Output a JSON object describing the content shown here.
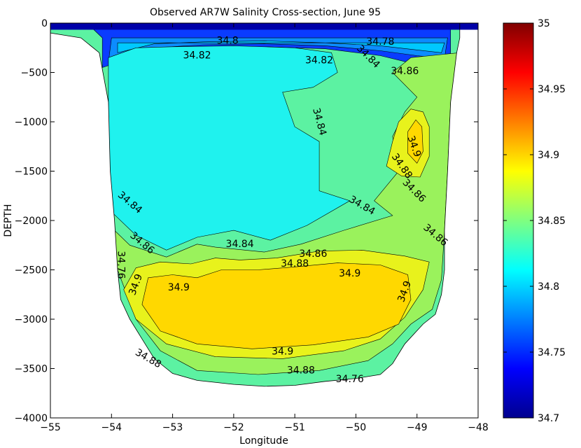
{
  "chart_data": {
    "type": "contour",
    "title": "Observed AR7W Salinity Cross-section, June 95",
    "xlabel": "Longitude",
    "ylabel": "DEPTH",
    "xlim": [
      -55,
      -48
    ],
    "ylim": [
      -4000,
      0
    ],
    "xticks": [
      -55,
      -54,
      -53,
      -52,
      -51,
      -50,
      -49,
      -48
    ],
    "yticks": [
      0,
      -500,
      -1000,
      -1500,
      -2000,
      -2500,
      -3000,
      -3500,
      -4000
    ],
    "grid": false,
    "colorbar": {
      "range": [
        34.7,
        35
      ],
      "ticks": [
        35,
        34.95,
        34.9,
        34.85,
        34.8,
        34.75,
        34.7
      ],
      "colormap": "jet"
    },
    "fill_colors": {
      "lt_34_76": "#0000a8",
      "b34_76": "#0a3cff",
      "b34_78": "#0c8cff",
      "b34_80": "#00c8ff",
      "b34_82": "#1ff2ee",
      "b34_84": "#5cf2a2",
      "b34_86": "#9af25c",
      "b34_88": "#e8f21c",
      "b34_90": "#ffd800"
    },
    "section_outline": [
      [
        -55.0,
        -100
      ],
      [
        -54.5,
        -150
      ],
      [
        -54.2,
        -300
      ],
      [
        -54.05,
        -800
      ],
      [
        -54.02,
        -1500
      ],
      [
        -53.95,
        -2000
      ],
      [
        -53.9,
        -2500
      ],
      [
        -53.85,
        -2800
      ],
      [
        -53.7,
        -3000
      ],
      [
        -53.5,
        -3200
      ],
      [
        -53.3,
        -3400
      ],
      [
        -53.0,
        -3550
      ],
      [
        -52.6,
        -3620
      ],
      [
        -52.0,
        -3660
      ],
      [
        -51.5,
        -3680
      ],
      [
        -51.0,
        -3670
      ],
      [
        -50.5,
        -3630
      ],
      [
        -50.0,
        -3600
      ],
      [
        -49.6,
        -3560
      ],
      [
        -49.4,
        -3450
      ],
      [
        -49.2,
        -3250
      ],
      [
        -48.9,
        -3050
      ],
      [
        -48.7,
        -2950
      ],
      [
        -48.6,
        -2750
      ],
      [
        -48.55,
        -2500
      ],
      [
        -48.55,
        -2100
      ],
      [
        -48.5,
        -1500
      ],
      [
        -48.45,
        -800
      ],
      [
        -48.35,
        -300
      ],
      [
        -48.3,
        -150
      ],
      [
        -48.3,
        0
      ],
      [
        -55.0,
        0
      ]
    ],
    "regions": [
      {
        "level": "b34_76",
        "points": [
          [
            -54.3,
            -60
          ],
          [
            -48.45,
            -60
          ],
          [
            -48.45,
            -300
          ],
          [
            -48.6,
            -500
          ],
          [
            -49,
            -420
          ],
          [
            -49.6,
            -330
          ],
          [
            -50.5,
            -260
          ],
          [
            -51.5,
            -240
          ],
          [
            -52.5,
            -250
          ],
          [
            -53.3,
            -290
          ],
          [
            -53.9,
            -400
          ],
          [
            -54.15,
            -450
          ],
          [
            -54.15,
            -150
          ]
        ]
      },
      {
        "level": "b34_78",
        "points": [
          [
            -54.0,
            -150
          ],
          [
            -48.5,
            -150
          ],
          [
            -48.55,
            -360
          ],
          [
            -49,
            -330
          ],
          [
            -49.6,
            -280
          ],
          [
            -50.5,
            -230
          ],
          [
            -51.5,
            -210
          ],
          [
            -52.5,
            -220
          ],
          [
            -53.3,
            -250
          ],
          [
            -53.8,
            -320
          ],
          [
            -54.05,
            -400
          ]
        ]
      },
      {
        "level": "b34_80",
        "points": [
          [
            -53.9,
            -200
          ],
          [
            -48.55,
            -200
          ],
          [
            -48.6,
            -300
          ],
          [
            -49.6,
            -230
          ],
          [
            -50.5,
            -200
          ],
          [
            -51.5,
            -180
          ],
          [
            -52.5,
            -190
          ],
          [
            -53.3,
            -210
          ],
          [
            -53.9,
            -300
          ]
        ]
      },
      {
        "level": "b34_82",
        "points": [
          [
            -54.05,
            -350
          ],
          [
            -53.6,
            -250
          ],
          [
            -53.0,
            -240
          ],
          [
            -52.0,
            -230
          ],
          [
            -51.0,
            -250
          ],
          [
            -50.4,
            -300
          ],
          [
            -50.3,
            -500
          ],
          [
            -50.7,
            -650
          ],
          [
            -51.2,
            -700
          ],
          [
            -51.0,
            -1050
          ],
          [
            -50.6,
            -1200
          ],
          [
            -50.6,
            -1700
          ],
          [
            -50.1,
            -1800
          ],
          [
            -50.8,
            -2050
          ],
          [
            -51.4,
            -2200
          ],
          [
            -52.0,
            -2100
          ],
          [
            -52.6,
            -2170
          ],
          [
            -53.1,
            -2300
          ],
          [
            -53.6,
            -2150
          ],
          [
            -54.02,
            -1900
          ],
          [
            -54.05,
            -800
          ]
        ]
      },
      {
        "level": "b34_86",
        "points": [
          [
            -48.3,
            -300
          ],
          [
            -49.1,
            -350
          ],
          [
            -49.4,
            -500
          ],
          [
            -49.0,
            -750
          ],
          [
            -49.2,
            -900
          ],
          [
            -49.4,
            -1150
          ],
          [
            -49.3,
            -1500
          ],
          [
            -49.7,
            -1800
          ],
          [
            -49.4,
            -1950
          ],
          [
            -50.2,
            -2100
          ],
          [
            -50.9,
            -2240
          ],
          [
            -51.5,
            -2320
          ],
          [
            -52.3,
            -2270
          ],
          [
            -52.6,
            -2240
          ],
          [
            -53.1,
            -2370
          ],
          [
            -53.7,
            -2250
          ],
          [
            -53.95,
            -2100
          ],
          [
            -53.9,
            -2500
          ],
          [
            -53.6,
            -3000
          ],
          [
            -53.2,
            -3320
          ],
          [
            -52.6,
            -3520
          ],
          [
            -51.6,
            -3560
          ],
          [
            -50.6,
            -3520
          ],
          [
            -49.8,
            -3420
          ],
          [
            -49.4,
            -3250
          ],
          [
            -49.1,
            -3050
          ],
          [
            -48.75,
            -2900
          ],
          [
            -48.6,
            -2600
          ],
          [
            -48.55,
            -2100
          ],
          [
            -48.5,
            -1500
          ],
          [
            -48.45,
            -800
          ]
        ]
      },
      {
        "level": "b34_88",
        "points": [
          [
            -53.6,
            -2480
          ],
          [
            -53.2,
            -2420
          ],
          [
            -52.7,
            -2440
          ],
          [
            -52.3,
            -2380
          ],
          [
            -51.9,
            -2400
          ],
          [
            -51.3,
            -2380
          ],
          [
            -50.6,
            -2310
          ],
          [
            -49.9,
            -2300
          ],
          [
            -49.2,
            -2360
          ],
          [
            -48.8,
            -2420
          ],
          [
            -48.9,
            -2700
          ],
          [
            -49.2,
            -2980
          ],
          [
            -49.6,
            -3200
          ],
          [
            -50.2,
            -3320
          ],
          [
            -51.2,
            -3400
          ],
          [
            -52.3,
            -3380
          ],
          [
            -53.1,
            -3250
          ],
          [
            -53.6,
            -3000
          ],
          [
            -53.8,
            -2700
          ]
        ]
      },
      {
        "level": "b34_90",
        "points": [
          [
            -53.4,
            -2580
          ],
          [
            -53.0,
            -2550
          ],
          [
            -52.6,
            -2580
          ],
          [
            -52.2,
            -2500
          ],
          [
            -51.6,
            -2500
          ],
          [
            -51.0,
            -2470
          ],
          [
            -50.3,
            -2430
          ],
          [
            -49.6,
            -2450
          ],
          [
            -49.15,
            -2550
          ],
          [
            -49.1,
            -2800
          ],
          [
            -49.3,
            -3050
          ],
          [
            -49.8,
            -3180
          ],
          [
            -50.7,
            -3260
          ],
          [
            -51.7,
            -3300
          ],
          [
            -52.6,
            -3250
          ],
          [
            -53.2,
            -3120
          ],
          [
            -53.5,
            -2850
          ]
        ]
      },
      {
        "level": "b34_88",
        "points": [
          [
            -49.5,
            -1450
          ],
          [
            -49.25,
            -1550
          ],
          [
            -48.95,
            -1560
          ],
          [
            -48.8,
            -1350
          ],
          [
            -48.8,
            -1050
          ],
          [
            -48.9,
            -900
          ],
          [
            -49.1,
            -870
          ],
          [
            -49.3,
            -1000
          ],
          [
            -49.4,
            -1200
          ]
        ]
      },
      {
        "level": "b34_90",
        "points": [
          [
            -49.15,
            -1320
          ],
          [
            -49.0,
            -1420
          ],
          [
            -48.9,
            -1300
          ],
          [
            -48.92,
            -1050
          ],
          [
            -49.02,
            -980
          ],
          [
            -49.15,
            -1100
          ]
        ]
      }
    ],
    "contour_labels": [
      {
        "text": "34.82",
        "x": -52.6,
        "y": -330
      },
      {
        "text": "34.82",
        "x": -50.6,
        "y": -380
      },
      {
        "text": "34.8",
        "x": -52.1,
        "y": -180
      },
      {
        "text": "34.78",
        "x": -49.6,
        "y": -190
      },
      {
        "text": "34.84",
        "x": -49.8,
        "y": -340,
        "angle": 45
      },
      {
        "text": "34.86",
        "x": -49.2,
        "y": -490
      },
      {
        "text": "34.84",
        "x": -50.6,
        "y": -1000,
        "angle": 75
      },
      {
        "text": "34.88",
        "x": -49.25,
        "y": -1450,
        "angle": 55
      },
      {
        "text": "34.9",
        "x": -49.05,
        "y": -1250,
        "angle": 70
      },
      {
        "text": "34.86",
        "x": -49.05,
        "y": -1700,
        "angle": 45
      },
      {
        "text": "34.84",
        "x": -49.9,
        "y": -1850,
        "angle": 30
      },
      {
        "text": "34.84",
        "x": -53.7,
        "y": -1820,
        "angle": 40
      },
      {
        "text": "34.86",
        "x": -53.5,
        "y": -2230,
        "angle": 40
      },
      {
        "text": "34.84",
        "x": -51.9,
        "y": -2240
      },
      {
        "text": "34.86",
        "x": -50.7,
        "y": -2340
      },
      {
        "text": "34.88",
        "x": -51.0,
        "y": -2440
      },
      {
        "text": "34.9",
        "x": -50.1,
        "y": -2540
      },
      {
        "text": "34.9",
        "x": -52.9,
        "y": -2680
      },
      {
        "text": "34.9",
        "x": -49.2,
        "y": -2720,
        "angle": -70
      },
      {
        "text": "34.9",
        "x": -51.2,
        "y": -3330
      },
      {
        "text": "34.88",
        "x": -50.9,
        "y": -3520
      },
      {
        "text": "34.76",
        "x": -50.1,
        "y": -3610
      },
      {
        "text": "34.88",
        "x": -53.4,
        "y": -3400,
        "angle": 30
      },
      {
        "text": "34.86",
        "x": -48.7,
        "y": -2150,
        "angle": 40
      },
      {
        "text": "34.9",
        "x": -53.6,
        "y": -2650,
        "angle": -70
      },
      {
        "text": "34.76",
        "x": -53.85,
        "y": -2450,
        "angle": 90
      }
    ]
  }
}
